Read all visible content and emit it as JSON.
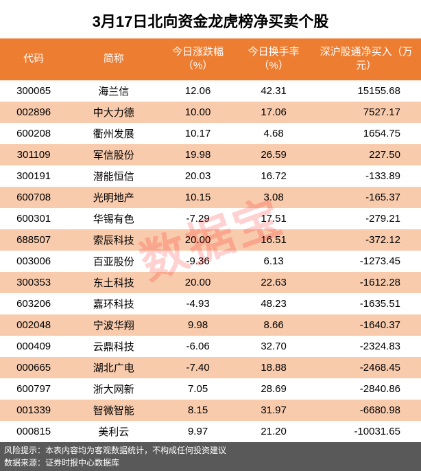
{
  "title": "3月17日北向资金龙虎榜净买卖个股",
  "watermark": "数据宝",
  "columns": {
    "code": "代码",
    "name": "简称",
    "change": "今日涨跌幅（%）",
    "turnover": "今日换手率（%）",
    "netbuy": "深沪股通净买入（万元）"
  },
  "rows": [
    {
      "code": "300065",
      "name": "海兰信",
      "change": "12.06",
      "turnover": "42.31",
      "netbuy": "15155.68"
    },
    {
      "code": "002896",
      "name": "中大力德",
      "change": "10.00",
      "turnover": "17.06",
      "netbuy": "7527.17"
    },
    {
      "code": "600208",
      "name": "衢州发展",
      "change": "10.17",
      "turnover": "4.68",
      "netbuy": "1654.75"
    },
    {
      "code": "301109",
      "name": "军信股份",
      "change": "19.98",
      "turnover": "26.59",
      "netbuy": "227.50"
    },
    {
      "code": "300191",
      "name": "潜能恒信",
      "change": "20.03",
      "turnover": "16.72",
      "netbuy": "-133.89"
    },
    {
      "code": "600708",
      "name": "光明地产",
      "change": "10.15",
      "turnover": "3.08",
      "netbuy": "-165.37"
    },
    {
      "code": "600301",
      "name": "华锡有色",
      "change": "-7.29",
      "turnover": "17.51",
      "netbuy": "-279.21"
    },
    {
      "code": "688507",
      "name": "索辰科技",
      "change": "20.00",
      "turnover": "16.51",
      "netbuy": "-372.12"
    },
    {
      "code": "003006",
      "name": "百亚股份",
      "change": "-9.36",
      "turnover": "6.13",
      "netbuy": "-1273.45"
    },
    {
      "code": "300353",
      "name": "东土科技",
      "change": "20.00",
      "turnover": "22.63",
      "netbuy": "-1612.28"
    },
    {
      "code": "603206",
      "name": "嘉环科技",
      "change": "-4.93",
      "turnover": "48.23",
      "netbuy": "-1635.51"
    },
    {
      "code": "002048",
      "name": "宁波华翔",
      "change": "9.98",
      "turnover": "8.66",
      "netbuy": "-1640.37"
    },
    {
      "code": "000409",
      "name": "云鼎科技",
      "change": "-6.06",
      "turnover": "32.70",
      "netbuy": "-2324.83"
    },
    {
      "code": "000665",
      "name": "湖北广电",
      "change": "-7.40",
      "turnover": "18.88",
      "netbuy": "-2468.45"
    },
    {
      "code": "600797",
      "name": "浙大网新",
      "change": "7.05",
      "turnover": "28.69",
      "netbuy": "-2840.86"
    },
    {
      "code": "001339",
      "name": "智微智能",
      "change": "8.15",
      "turnover": "31.97",
      "netbuy": "-6680.98"
    },
    {
      "code": "000815",
      "name": "美利云",
      "change": "9.97",
      "turnover": "21.20",
      "netbuy": "-10031.65"
    }
  ],
  "footer": {
    "risk": "风险提示：本表内容均为客观数据统计，不构成任何投资建议",
    "source": "数据来源：证券时报中心数据库"
  },
  "style": {
    "header_bg": "#ed7d31",
    "odd_row_bg": "#f8cbad",
    "even_row_bg": "#ffffff",
    "footer_bg": "#595959",
    "watermark_color": "rgba(255,0,0,0.18)"
  }
}
